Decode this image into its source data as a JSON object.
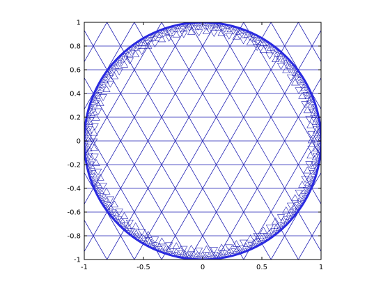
{
  "figure": {
    "line_color": "#1f1fb4",
    "boundary_color": "#2a2ae0",
    "axes_color": "#000000",
    "background": "#ffffff"
  },
  "chart_data": {
    "type": "mesh",
    "description_shape": "triangular mesh refined near unit circle boundary",
    "xlim": [
      -1,
      1
    ],
    "ylim": [
      -1,
      1
    ],
    "xticks": [
      -1,
      -0.5,
      0,
      0.5,
      1
    ],
    "xtick_labels": [
      "-1",
      "-0.5",
      "0",
      "0.5",
      "1"
    ],
    "yticks": [
      -1,
      -0.8,
      -0.6,
      -0.4,
      -0.2,
      0,
      0.2,
      0.4,
      0.6,
      0.8,
      1
    ],
    "ytick_labels": [
      "-1",
      "-0.8",
      "-0.6",
      "-0.4",
      "-0.2",
      "0",
      "0.2",
      "0.4",
      "0.6",
      "0.8",
      "1"
    ],
    "circle": {
      "cx": 0,
      "cy": 0,
      "r": 1
    },
    "grid": false
  }
}
